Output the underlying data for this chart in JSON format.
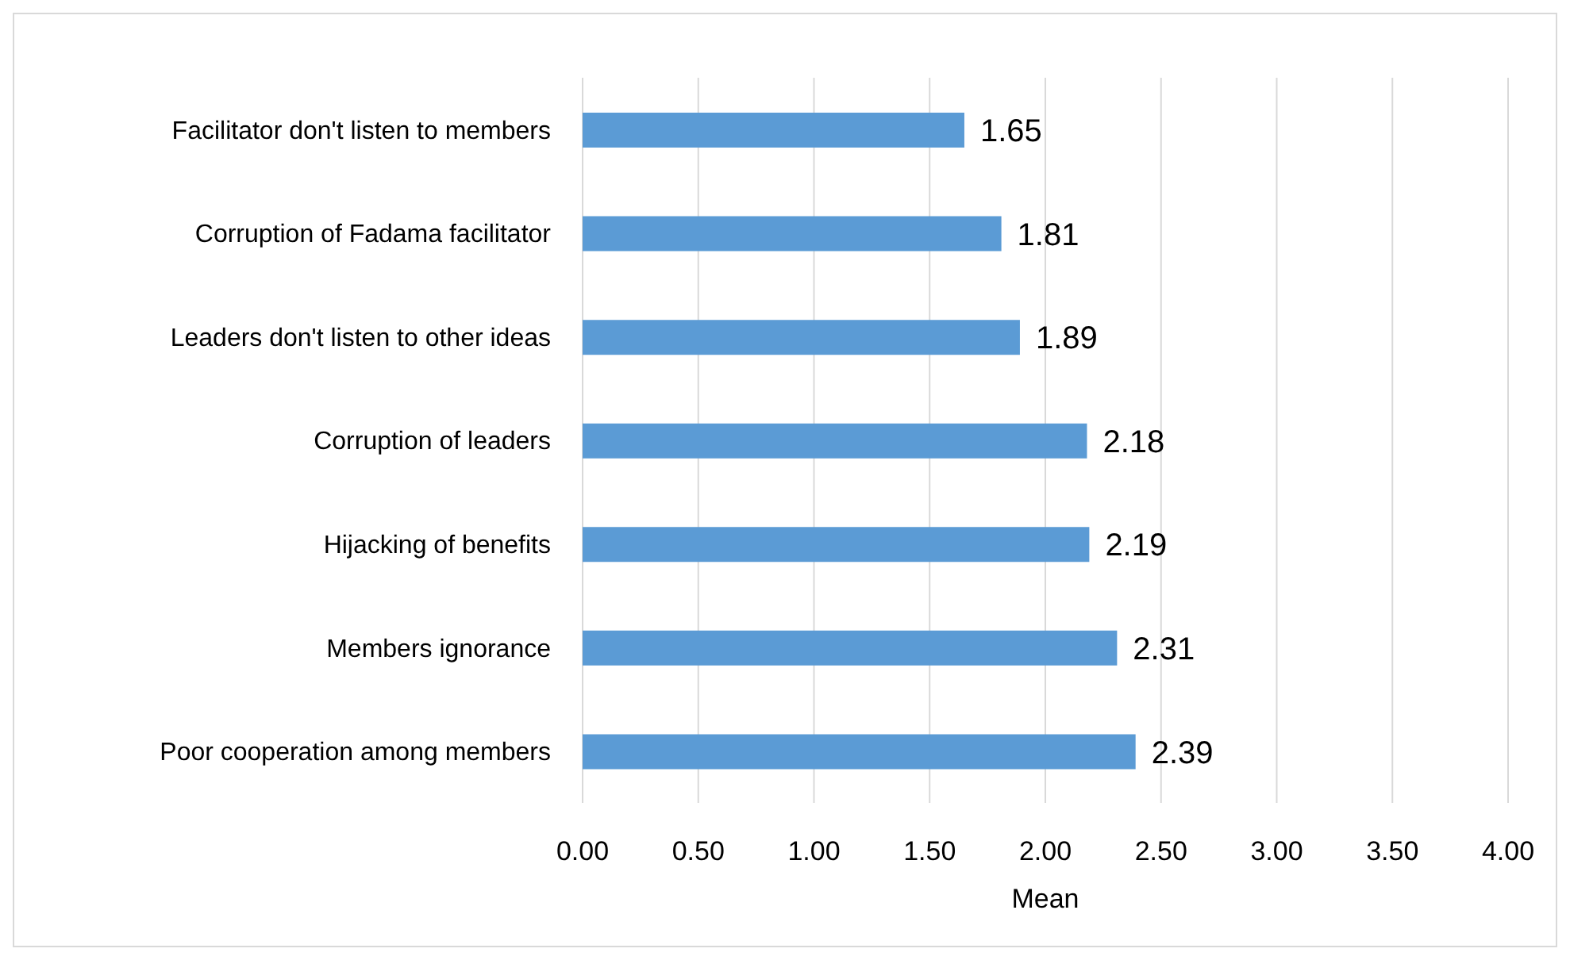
{
  "chart_data": {
    "type": "bar",
    "orientation": "horizontal",
    "xlabel": "Mean",
    "categories": [
      "Facilitator don't listen to members",
      "Corruption of Fadama facilitator",
      "Leaders don't listen to other ideas",
      "Corruption of leaders",
      "Hijacking of benefits",
      "Members ignorance",
      "Poor cooperation among members"
    ],
    "values": [
      1.65,
      1.81,
      1.89,
      2.18,
      2.19,
      2.31,
      2.39
    ],
    "color": "#5b9bd5",
    "xlim": [
      0,
      4
    ],
    "xticks": [
      {
        "value": 0,
        "label": "0.00"
      },
      {
        "value": 0.5,
        "label": "0.50"
      },
      {
        "value": 1,
        "label": "1.00"
      },
      {
        "value": 1.5,
        "label": "1.50"
      },
      {
        "value": 2,
        "label": "2.00"
      },
      {
        "value": 2.5,
        "label": "2.50"
      },
      {
        "value": 3,
        "label": "3.00"
      },
      {
        "value": 3.5,
        "label": "3.50"
      },
      {
        "value": 4,
        "label": "4.00"
      }
    ],
    "grid": "x",
    "data_labels": true
  }
}
